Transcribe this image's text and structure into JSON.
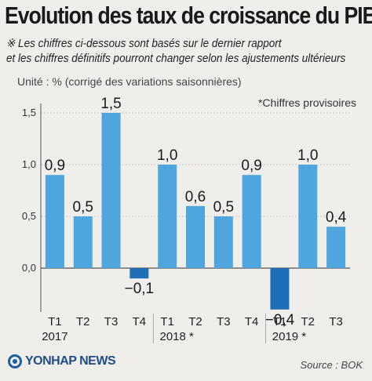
{
  "header": {
    "title": "Evolution des taux de croissance du PIB",
    "note_line1": "※ Les chiffres ci-dessous sont basés sur le dernier rapport",
    "note_line2": "et les chiffres définitifs pourront changer selon les ajustements ultérieurs"
  },
  "chart_data": {
    "type": "bar",
    "unit_label": "Unité : % (corrigé des variations saisonnières)",
    "provisional_note": "*Chiffres provisoires",
    "categories": [
      "T1",
      "T2",
      "T3",
      "T4",
      "T1",
      "T2",
      "T3",
      "T4",
      "T1",
      "T2",
      "T3"
    ],
    "years": [
      {
        "label": "2017",
        "start": 0
      },
      {
        "label": "2018 *",
        "start": 4
      },
      {
        "label": "2019 *",
        "start": 8
      }
    ],
    "values": [
      0.9,
      0.5,
      1.5,
      -0.1,
      1.0,
      0.6,
      0.5,
      0.9,
      -0.4,
      1.0,
      0.4
    ],
    "value_labels": [
      "0,9",
      "0,5",
      "1,5",
      "−0,1",
      "1,0",
      "0,6",
      "0,5",
      "0,9",
      "−0,4",
      "1,0",
      "0,4"
    ],
    "yticks": [
      0.0,
      0.5,
      1.0,
      1.5
    ],
    "ytick_labels": [
      "0,0",
      "0,5",
      "1,0",
      "1,5"
    ],
    "ylim": [
      -0.4,
      1.5
    ],
    "colors": {
      "positive": "#4fa6de",
      "negative": "#1f6fb8",
      "grid": "#bfbfbf",
      "axis": "#555555"
    }
  },
  "footer": {
    "logo_text": "YONHAP NEWS",
    "logo_icon": "yonhap-logo-icon",
    "source": "Source : BOK"
  }
}
